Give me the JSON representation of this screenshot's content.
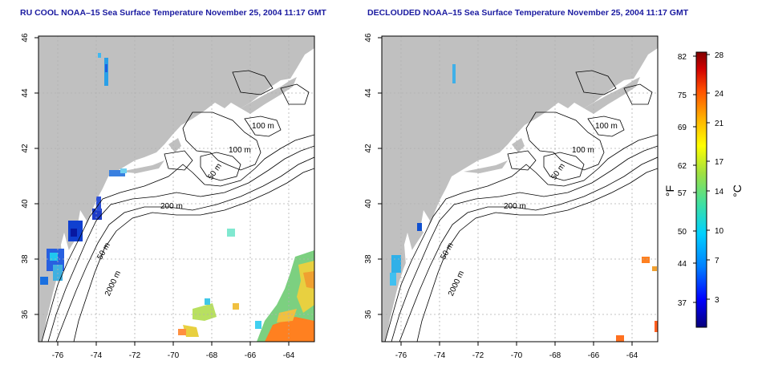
{
  "left_map": {
    "title": "RU COOL NOAA–15 Sea Surface Temperature November 25, 2004 11:17 GMT",
    "contour_labels": [
      "100 m",
      "100 m",
      "50 m",
      "200 m",
      "50 m",
      "2000 m"
    ]
  },
  "right_map": {
    "title": "DECLOUDED NOAA–15 Sea Surface Temperature November 25, 2004 11:17 GMT",
    "contour_labels": [
      "100 m",
      "100 m",
      "50 m",
      "200 m",
      "50 m",
      "2000 m"
    ]
  },
  "axes": {
    "x_ticks": [
      "-76",
      "-74",
      "-72",
      "-70",
      "-68",
      "-66",
      "-64"
    ],
    "y_ticks": [
      "46",
      "44",
      "42",
      "40",
      "38",
      "36"
    ]
  },
  "colorbar": {
    "fahrenheit_ticks": [
      "82",
      "75",
      "69",
      "62",
      "57",
      "50",
      "44",
      "37"
    ],
    "celsius_ticks": [
      "28",
      "24",
      "21",
      "17",
      "14",
      "10",
      "7",
      "3"
    ],
    "f_label": "°F",
    "c_label": "°C",
    "colors": [
      "#08007a",
      "#0000ff",
      "#0080ff",
      "#00d0ff",
      "#40e0a0",
      "#a0e040",
      "#ffff00",
      "#ffb000",
      "#ff5000",
      "#d00000",
      "#800000"
    ]
  },
  "colors": {
    "land": "#c0c0c0",
    "ocean": "#ffffff",
    "contour": "#000000",
    "grid": "#b0b0b0",
    "title": "#1a1aa0"
  }
}
